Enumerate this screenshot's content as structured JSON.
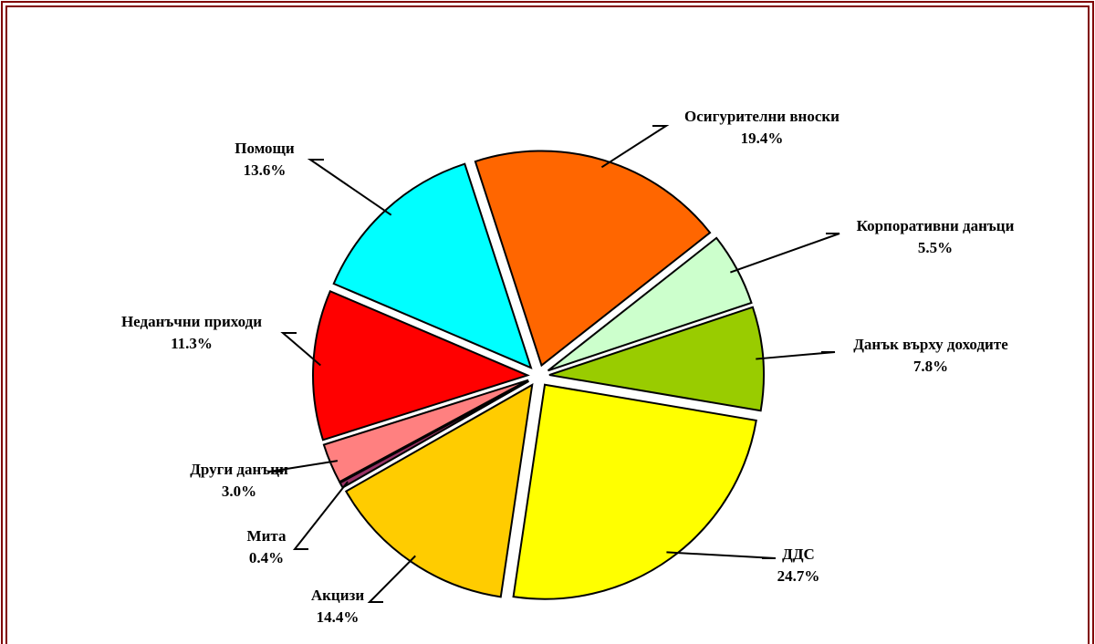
{
  "chart_data": {
    "type": "pie",
    "categories": [
      "Осигурителни вноски",
      "Корпоративни данъци",
      "Данък върху доходите",
      "ДДС",
      "Акцизи",
      "Мита",
      "Други данъци",
      "Неданъчни приходи",
      "Помощи"
    ],
    "values": [
      19.4,
      5.5,
      7.8,
      24.7,
      14.4,
      0.4,
      3.0,
      11.3,
      13.6
    ],
    "value_labels": [
      "19.4%",
      "5.5%",
      "7.8%",
      "24.7%",
      "14.4%",
      "0.4%",
      "3.0%",
      "11.3%",
      "13.6%"
    ],
    "colors": [
      "#FF6600",
      "#CCFFCC",
      "#99CC00",
      "#FFFF00",
      "#FFCC00",
      "#993366",
      "#FF8080",
      "#FF0000",
      "#00FFFF"
    ]
  }
}
